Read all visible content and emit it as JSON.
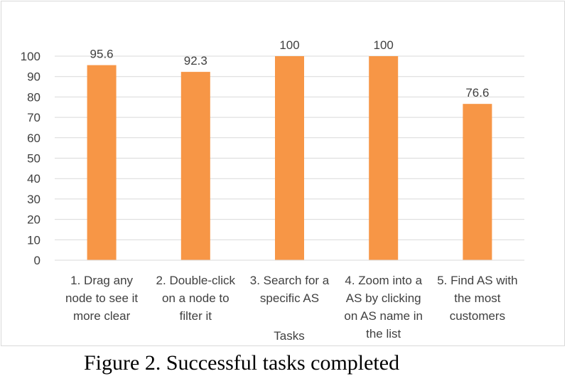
{
  "chart_data": {
    "type": "bar",
    "categories": [
      "1. Drag any node to see it more clear",
      "2. Double-click on a node to filter it",
      "3. Search for a specific AS",
      "4. Zoom into a AS by clicking on AS name in the list",
      "5. Find AS with the most customers"
    ],
    "category_label_lines": [
      [
        "1. Drag any",
        "node to see it",
        "more clear"
      ],
      [
        "2. Double-click",
        "on a node to",
        "filter it"
      ],
      [
        "3. Search for a",
        "specific AS"
      ],
      [
        "4. Zoom into a",
        "AS by clicking",
        "on AS name in",
        "the list"
      ],
      [
        "5. Find AS with",
        "the most",
        "customers"
      ]
    ],
    "values": [
      95.6,
      92.3,
      100,
      100,
      76.6
    ],
    "data_labels": [
      "95.6",
      "92.3",
      "100",
      "100",
      "76.6"
    ],
    "xlabel": "Tasks",
    "ylabel": "",
    "ylim": [
      0,
      100
    ],
    "yticks": [
      0,
      10,
      20,
      30,
      40,
      50,
      60,
      70,
      80,
      90,
      100
    ],
    "grid": true,
    "legend": "none",
    "bar_color": "#F79646",
    "grid_color": "#d9d9d9",
    "text_color": "#404040"
  },
  "caption": "Figure 2. Successful tasks completed"
}
